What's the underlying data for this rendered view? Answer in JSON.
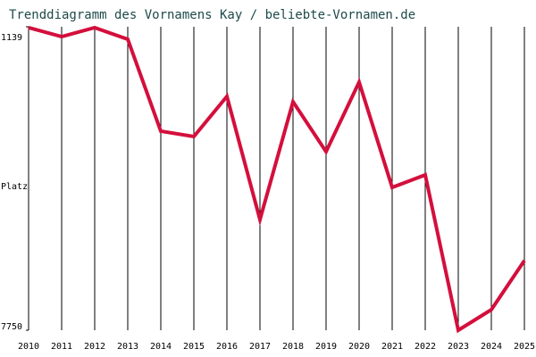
{
  "chart_data": {
    "type": "line",
    "title": "Trenddiagramm des Vornamens Kay / beliebte-Vornamen.de",
    "y_label": "Platz",
    "categories": [
      "2010",
      "2011",
      "2012",
      "2013",
      "2014",
      "2015",
      "2016",
      "2017",
      "2018",
      "2019",
      "2020",
      "2021",
      "2022",
      "2023",
      "2024",
      "2025"
    ],
    "series": [
      {
        "name": "Kay",
        "color": "#d40f3c",
        "values": [
          1158,
          1353,
          1158,
          1411,
          3414,
          3530,
          2655,
          5339,
          2772,
          3861,
          2344,
          4638,
          4366,
          7750,
          7303,
          6233
        ]
      }
    ],
    "ylim": [
      7750,
      1139
    ],
    "yticks": [
      1139,
      7750
    ],
    "grid": true
  }
}
